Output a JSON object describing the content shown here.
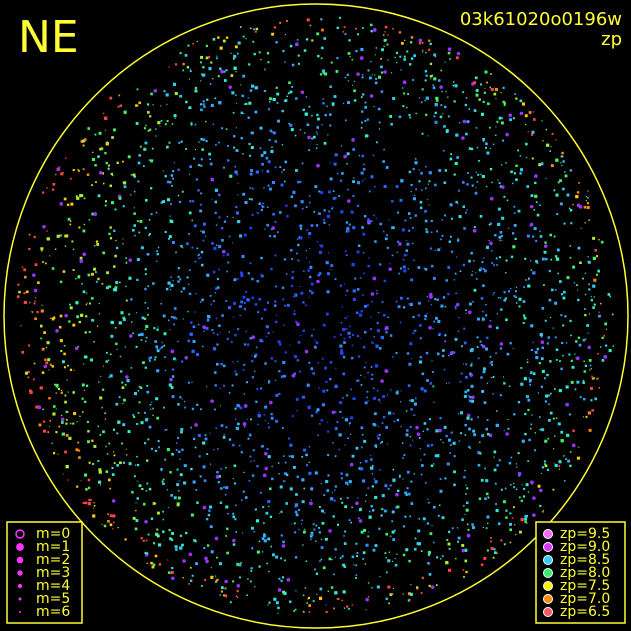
{
  "title": "NE",
  "frame_id": "03k61020o0196w",
  "frame_label": "zp",
  "magnitude_legend": [
    "m=0",
    "m=1",
    "m=2",
    "m=3",
    "m=4",
    "m=5",
    "m=6"
  ],
  "zp_legend": [
    {
      "label": "zp=9.5",
      "color": "#ff66ff"
    },
    {
      "label": "zp=9.0",
      "color": "#dd33ff"
    },
    {
      "label": "zp=8.5",
      "color": "#33ccee"
    },
    {
      "label": "zp=8.0",
      "color": "#33ee66"
    },
    {
      "label": "zp=7.5",
      "color": "#ffee00"
    },
    {
      "label": "zp=7.0",
      "color": "#ff8811"
    },
    {
      "label": "zp=6.5",
      "color": "#ff5566"
    }
  ]
}
